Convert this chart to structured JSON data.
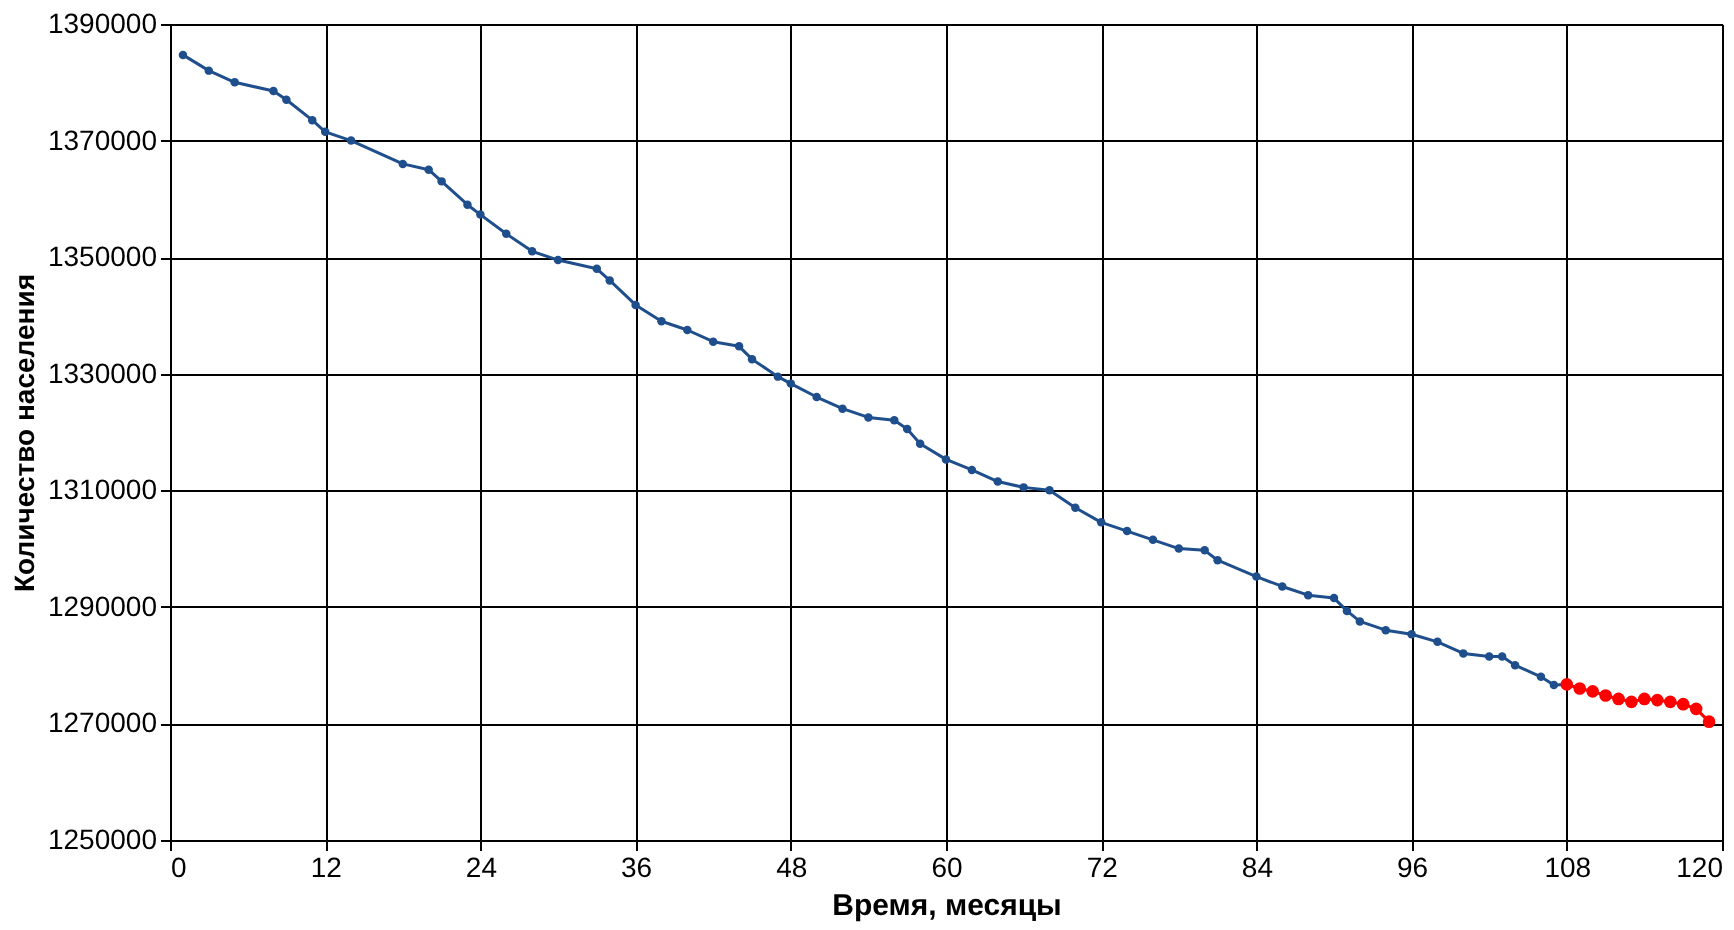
{
  "chart_data": {
    "type": "line",
    "xlabel": "Время, месяцы",
    "ylabel": "Количество населения",
    "xlim": [
      0,
      120
    ],
    "xticks": [
      0,
      12,
      24,
      36,
      48,
      60,
      72,
      84,
      96,
      108,
      120
    ],
    "ylim": [
      1250000,
      1390000
    ],
    "yticks": [
      1250000,
      1270000,
      1290000,
      1310000,
      1330000,
      1350000,
      1370000,
      1390000
    ],
    "grid": true,
    "marker": "circle",
    "line_style": "solid",
    "series": [
      {
        "color": "#1f4e8c",
        "x": [
          1,
          3,
          5,
          8,
          9,
          11,
          12,
          14,
          18,
          20,
          21,
          23,
          24,
          26,
          28,
          30,
          33,
          34,
          36,
          38,
          40,
          42,
          44,
          45,
          47,
          48,
          50,
          52,
          54,
          56,
          57,
          58,
          60,
          62,
          64,
          66,
          68,
          70,
          72,
          74,
          76,
          78,
          80,
          81,
          84,
          86,
          88,
          90,
          91,
          92,
          94,
          96,
          98,
          100,
          102,
          103,
          104,
          106,
          107,
          108
        ],
        "values": [
          1384700,
          1382000,
          1380000,
          1378500,
          1377000,
          1373500,
          1371500,
          1370000,
          1366000,
          1365000,
          1363000,
          1359000,
          1357300,
          1354000,
          1351000,
          1349500,
          1348000,
          1346000,
          1341800,
          1339000,
          1337500,
          1335500,
          1334700,
          1332500,
          1329500,
          1328300,
          1326000,
          1324000,
          1322500,
          1322000,
          1320500,
          1318000,
          1315300,
          1313500,
          1311500,
          1310500,
          1310000,
          1307000,
          1304500,
          1303000,
          1301500,
          1300000,
          1299700,
          1298000,
          1295200,
          1293500,
          1292000,
          1291500,
          1289300,
          1287500,
          1286000,
          1285300,
          1284000,
          1282000,
          1281500,
          1281500,
          1280000,
          1278000,
          1276600,
          1276700
        ]
      },
      {
        "color": "#ff0000",
        "x": [
          108,
          109,
          110,
          111,
          112,
          113,
          114,
          115,
          116,
          117,
          118,
          119
        ],
        "values": [
          1276700,
          1276000,
          1275500,
          1274800,
          1274200,
          1273700,
          1274200,
          1274000,
          1273700,
          1273300,
          1272500,
          1270300
        ]
      }
    ]
  }
}
